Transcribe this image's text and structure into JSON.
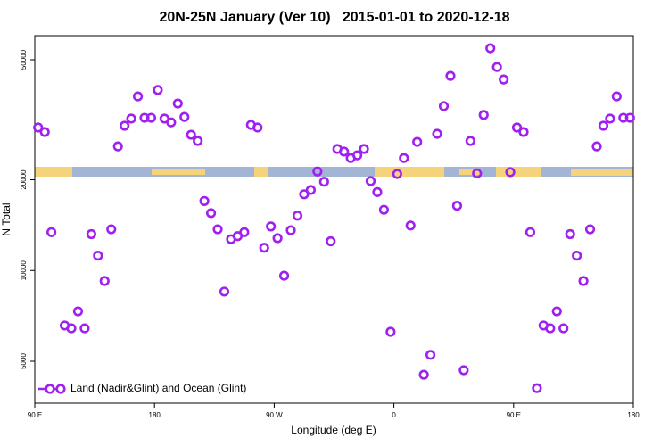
{
  "chart_data": {
    "type": "scatter",
    "title": "20N-25N January (Ver 10)   2015-01-01 to 2020-12-18",
    "x_label": "Longitude (deg E)",
    "y_label": "N Total",
    "xlim": [
      90,
      540
    ],
    "ylim": [
      3630,
      60100
    ],
    "ylog": true,
    "xticks": [
      {
        "value": 90,
        "label": "90 E"
      },
      180,
      {
        "value": 270,
        "label": "90 W"
      },
      {
        "value": 360,
        "label": "0"
      },
      {
        "value": 450,
        "label": "90 E"
      },
      {
        "value": 540,
        "label": "180"
      }
    ],
    "yticks": [
      5000,
      10000,
      20000,
      50000
    ],
    "legend": "bottom-left",
    "x": [
      92.5,
      97.5,
      102.5,
      107.5,
      112.5,
      117.5,
      122.5,
      127.5,
      132.5,
      137.5,
      142.5,
      147.5,
      152.5,
      157.5,
      162.5,
      167.5,
      172.5,
      177.5,
      182.5,
      187.5,
      192.5,
      197.5,
      202.5,
      207.5,
      212.5,
      217.5,
      222.5,
      227.5,
      232.5,
      237.5,
      242.5,
      247.5,
      252.5,
      257.5,
      262.5,
      267.5,
      272.5,
      277.5,
      282.5,
      287.5,
      292.5,
      297.5,
      302.5,
      307.5,
      312.5,
      317.5,
      322.5,
      327.5,
      332.5,
      337.5,
      342.5,
      347.5,
      352.5,
      357.5,
      362.5,
      367.5,
      372.5,
      377.5,
      382.5,
      387.5,
      392.5,
      397.5,
      402.5,
      407.5,
      412.5,
      417.5,
      422.5,
      427.5,
      432.5,
      437.5,
      442.5,
      447.5,
      452.5,
      457.5,
      462.5,
      467.5,
      472.5,
      477.5,
      482.5,
      487.5,
      492.5,
      497.5,
      502.5,
      507.5,
      512.5,
      517.5,
      522.5,
      527.5,
      532.5,
      537.5
    ],
    "series": [
      {
        "name": "Land (Nadir&Glint) and Ocean (Glint)",
        "color": "#a020f0",
        "values": [
          29800,
          28800,
          13400,
          null,
          6570,
          6430,
          7320,
          6430,
          13200,
          11200,
          9230,
          13700,
          25800,
          30200,
          31900,
          37800,
          32100,
          32100,
          39700,
          31900,
          31000,
          35800,
          32300,
          28200,
          26900,
          17000,
          15500,
          13700,
          8510,
          12700,
          13000,
          13400,
          30400,
          29800,
          11900,
          14000,
          12800,
          9610,
          13600,
          15200,
          17900,
          18500,
          21300,
          19700,
          12500,
          25300,
          24800,
          23600,
          24100,
          25300,
          19800,
          18200,
          15900,
          6260,
          20900,
          23600,
          14100,
          26700,
          4510,
          5250,
          28400,
          35100,
          44200,
          16400,
          4670,
          26900,
          21000,
          32800,
          54600,
          47300,
          43000,
          21200,
          29800,
          28800,
          13400,
          4070,
          6570,
          6430,
          7320,
          6430,
          13200,
          11200,
          9230,
          13700,
          25800,
          30200,
          31900,
          37800,
          32100,
          32100
        ]
      }
    ]
  }
}
